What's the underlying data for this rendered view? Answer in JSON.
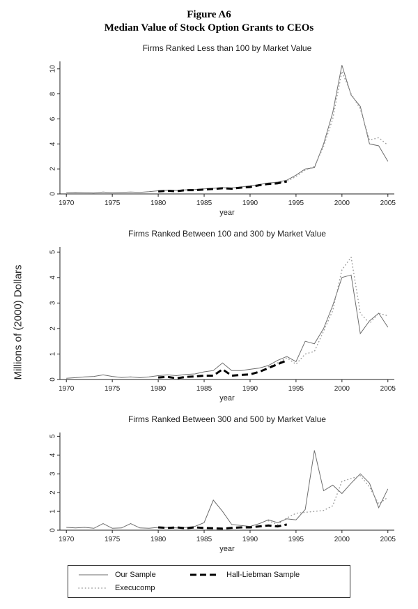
{
  "figure": {
    "title": "Figure A6",
    "subtitle": "Median Value of Stock Option Grants to CEOs",
    "y_axis_label": "Millions of (2000) Dollars"
  },
  "colors": {
    "our_sample": "#6e6e6e",
    "hall_liebman": "#000000",
    "execucomp": "#9f9f9f",
    "axis": "#222222"
  },
  "legend": {
    "items": [
      {
        "label": "Our Sample",
        "key": "our_sample",
        "style": "solid"
      },
      {
        "label": "Hall-Liebman Sample",
        "key": "hall_liebman",
        "style": "thick-dashed"
      },
      {
        "label": "Execucomp",
        "key": "execucomp",
        "style": "dotted"
      }
    ]
  },
  "chart_data": [
    {
      "type": "line",
      "title": "Firms Ranked Less than 100 by Market Value",
      "xlabel": "year",
      "ylabel": "",
      "xlim": [
        1969.3,
        2005.7
      ],
      "ylim": [
        0,
        10.6
      ],
      "xticks": [
        1970,
        1975,
        1980,
        1985,
        1990,
        1995,
        2000,
        2005
      ],
      "yticks": [
        0,
        2,
        4,
        6,
        8,
        10
      ],
      "series": [
        {
          "name": "Our Sample",
          "key": "our_sample",
          "x": [
            1970,
            1971,
            1972,
            1973,
            1974,
            1975,
            1976,
            1977,
            1978,
            1979,
            1980,
            1981,
            1982,
            1983,
            1984,
            1985,
            1986,
            1987,
            1988,
            1989,
            1990,
            1991,
            1992,
            1993,
            1994,
            1995,
            1996,
            1997,
            1998,
            1999,
            2000,
            2001,
            2002,
            2003,
            2004,
            2005
          ],
          "y": [
            0.1,
            0.12,
            0.1,
            0.08,
            0.15,
            0.1,
            0.12,
            0.15,
            0.13,
            0.18,
            0.25,
            0.3,
            0.28,
            0.33,
            0.35,
            0.4,
            0.45,
            0.5,
            0.48,
            0.55,
            0.65,
            0.75,
            0.88,
            0.95,
            1.1,
            1.5,
            2.0,
            2.1,
            4.0,
            6.5,
            10.3,
            7.9,
            7.0,
            4.0,
            3.85,
            2.6
          ]
        },
        {
          "name": "Execucomp",
          "key": "execucomp",
          "x": [
            1992,
            1993,
            1994,
            1995,
            1996,
            1997,
            1998,
            1999,
            2000,
            2001,
            2002,
            2003,
            2004,
            2005
          ],
          "y": [
            0.85,
            0.9,
            1.0,
            1.4,
            1.9,
            2.2,
            3.8,
            6.0,
            9.8,
            8.0,
            6.8,
            4.3,
            4.5,
            3.9
          ]
        },
        {
          "name": "Hall-Liebman Sample",
          "key": "hall_liebman",
          "x": [
            1980,
            1981,
            1982,
            1983,
            1984,
            1985,
            1986,
            1987,
            1988,
            1989,
            1990,
            1991,
            1992,
            1993,
            1994
          ],
          "y": [
            0.2,
            0.25,
            0.22,
            0.3,
            0.3,
            0.35,
            0.4,
            0.45,
            0.42,
            0.5,
            0.55,
            0.7,
            0.8,
            0.85,
            1.0
          ]
        }
      ]
    },
    {
      "type": "line",
      "title": "Firms Ranked Between 100 and 300 by Market Value",
      "xlabel": "year",
      "ylabel": "",
      "xlim": [
        1969.3,
        2005.7
      ],
      "ylim": [
        0,
        5.2
      ],
      "xticks": [
        1970,
        1975,
        1980,
        1985,
        1990,
        1995,
        2000,
        2005
      ],
      "yticks": [
        0,
        1,
        2,
        3,
        4,
        5
      ],
      "series": [
        {
          "name": "Our Sample",
          "key": "our_sample",
          "x": [
            1970,
            1971,
            1972,
            1973,
            1974,
            1975,
            1976,
            1977,
            1978,
            1979,
            1980,
            1981,
            1982,
            1983,
            1984,
            1985,
            1986,
            1987,
            1988,
            1989,
            1990,
            1991,
            1992,
            1993,
            1994,
            1995,
            1996,
            1997,
            1998,
            1999,
            2000,
            2001,
            2002,
            2003,
            2004,
            2005
          ],
          "y": [
            0.05,
            0.07,
            0.1,
            0.12,
            0.18,
            0.12,
            0.08,
            0.1,
            0.07,
            0.1,
            0.15,
            0.18,
            0.15,
            0.2,
            0.22,
            0.3,
            0.35,
            0.65,
            0.35,
            0.35,
            0.4,
            0.45,
            0.55,
            0.75,
            0.9,
            0.7,
            1.5,
            1.4,
            2.0,
            2.9,
            4.0,
            4.1,
            1.8,
            2.3,
            2.6,
            2.05
          ]
        },
        {
          "name": "Execucomp",
          "key": "execucomp",
          "x": [
            1992,
            1993,
            1994,
            1995,
            1996,
            1997,
            1998,
            1999,
            2000,
            2001,
            2002,
            2003,
            2004,
            2005
          ],
          "y": [
            0.5,
            0.65,
            0.85,
            0.6,
            1.0,
            1.1,
            1.9,
            2.7,
            4.3,
            4.8,
            2.6,
            2.2,
            2.6,
            2.5
          ]
        },
        {
          "name": "Hall-Liebman Sample",
          "key": "hall_liebman",
          "x": [
            1980,
            1981,
            1982,
            1983,
            1984,
            1985,
            1986,
            1987,
            1988,
            1989,
            1990,
            1991,
            1992,
            1993,
            1994
          ],
          "y": [
            0.08,
            0.1,
            0.05,
            0.1,
            0.12,
            0.15,
            0.15,
            0.4,
            0.15,
            0.18,
            0.2,
            0.3,
            0.45,
            0.6,
            0.75
          ]
        }
      ]
    },
    {
      "type": "line",
      "title": "Firms Ranked Between 300 and 500 by Market Value",
      "xlabel": "year",
      "ylabel": "",
      "xlim": [
        1969.3,
        2005.7
      ],
      "ylim": [
        0,
        5.2
      ],
      "xticks": [
        1970,
        1975,
        1980,
        1985,
        1990,
        1995,
        2000,
        2005
      ],
      "yticks": [
        0,
        1,
        2,
        3,
        4,
        5
      ],
      "series": [
        {
          "name": "Our Sample",
          "key": "our_sample",
          "x": [
            1970,
            1971,
            1972,
            1973,
            1974,
            1975,
            1976,
            1977,
            1978,
            1979,
            1980,
            1981,
            1982,
            1983,
            1984,
            1985,
            1986,
            1987,
            1988,
            1989,
            1990,
            1991,
            1992,
            1993,
            1994,
            1995,
            1996,
            1997,
            1998,
            1999,
            2000,
            2001,
            2002,
            2003,
            2004,
            2005
          ],
          "y": [
            0.15,
            0.12,
            0.15,
            0.1,
            0.35,
            0.1,
            0.12,
            0.35,
            0.12,
            0.1,
            0.15,
            0.15,
            0.12,
            0.15,
            0.2,
            0.4,
            1.6,
            1.0,
            0.3,
            0.25,
            0.2,
            0.35,
            0.55,
            0.4,
            0.6,
            0.55,
            1.1,
            4.25,
            2.1,
            2.4,
            1.95,
            2.5,
            3.0,
            2.5,
            1.2,
            2.2
          ]
        },
        {
          "name": "Execucomp",
          "key": "execucomp",
          "x": [
            1992,
            1993,
            1994,
            1995,
            1996,
            1997,
            1998,
            1999,
            2000,
            2001,
            2002,
            2003,
            2004,
            2005
          ],
          "y": [
            0.5,
            0.3,
            0.65,
            0.9,
            0.95,
            1.0,
            1.05,
            1.3,
            2.6,
            2.75,
            2.9,
            2.3,
            1.4,
            1.75
          ]
        },
        {
          "name": "Hall-Liebman Sample",
          "key": "hall_liebman",
          "x": [
            1980,
            1981,
            1982,
            1983,
            1984,
            1985,
            1986,
            1987,
            1988,
            1989,
            1990,
            1991,
            1992,
            1993,
            1994
          ],
          "y": [
            0.15,
            0.12,
            0.15,
            0.1,
            0.15,
            0.12,
            0.1,
            0.08,
            0.12,
            0.15,
            0.15,
            0.2,
            0.25,
            0.2,
            0.3
          ]
        }
      ]
    }
  ]
}
